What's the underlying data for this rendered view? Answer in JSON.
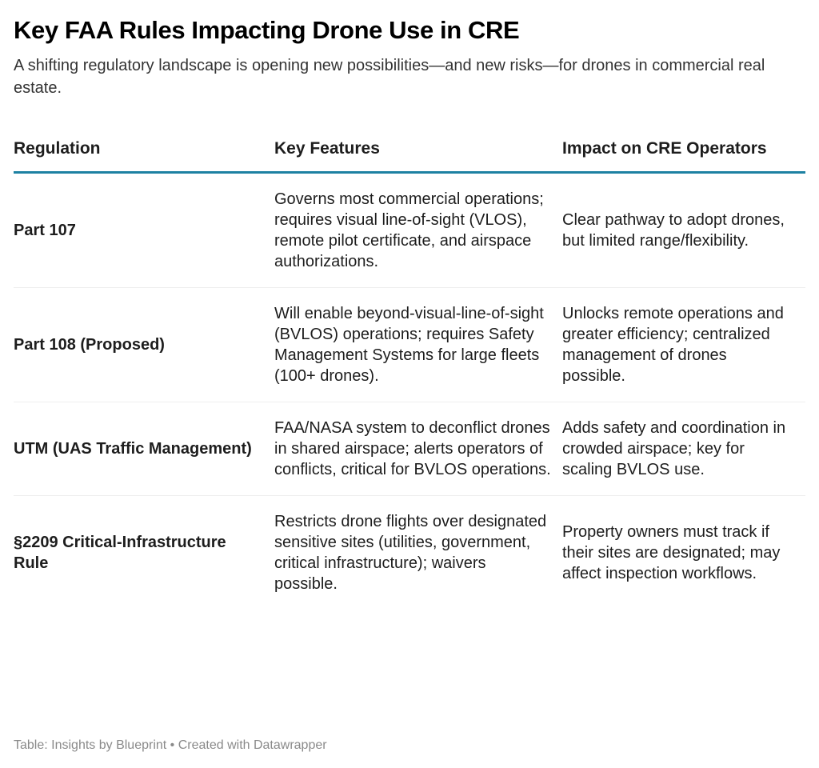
{
  "header": {
    "title": "Key FAA Rules Impacting Drone Use in CRE",
    "subtitle": "A shifting regulatory landscape is opening new possibilities—and new risks—for drones in commercial real estate."
  },
  "table": {
    "columns": [
      "Regulation",
      "Key Features",
      "Impact on CRE Operators"
    ],
    "rows": [
      {
        "regulation": "Part 107",
        "features": "Governs most commercial operations; requires visual line-of-sight (VLOS), remote pilot certificate, and airspace authorizations.",
        "impact": "Clear pathway to adopt drones, but limited range/flexibility."
      },
      {
        "regulation": "Part 108 (Proposed)",
        "features": "Will enable beyond-visual-line-of-sight (BVLOS) operations; requires Safety Management Systems for large fleets (100+ drones).",
        "impact": "Unlocks remote operations and greater efficiency; centralized management of drones possible."
      },
      {
        "regulation": "UTM (UAS Traffic Management)",
        "features": "FAA/NASA system to deconflict drones in shared airspace; alerts operators of conflicts, critical for BVLOS operations.",
        "impact": "Adds safety and coordination in crowded airspace; key for scaling BVLOS use."
      },
      {
        "regulation": "§2209 Critical-Infrastructure Rule",
        "features": "Restricts drone flights over designated sensitive sites (utilities, government, critical infrastructure); waivers possible.",
        "impact": "Property owners must track if their sites are designated; may affect inspection workflows."
      }
    ]
  },
  "footer": {
    "source": "Table: Insights by Blueprint • Created with Datawrapper"
  },
  "colors": {
    "header_rule": "#1d81a2",
    "row_divider": "#eeeeee",
    "footer_text": "#8a8a8a"
  }
}
